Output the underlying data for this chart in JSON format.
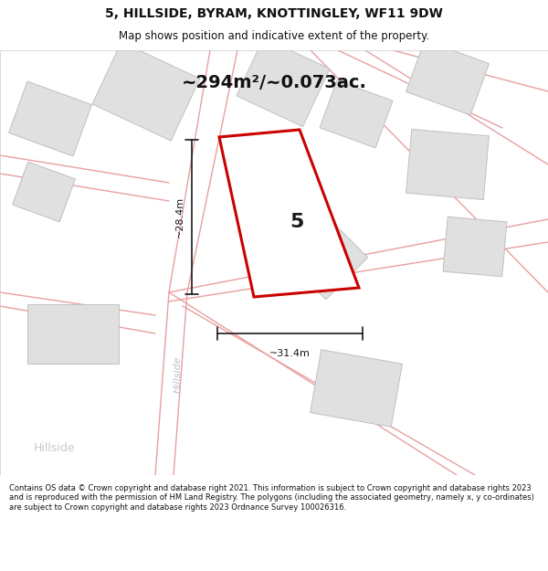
{
  "title": "5, HILLSIDE, BYRAM, KNOTTINGLEY, WF11 9DW",
  "subtitle": "Map shows position and indicative extent of the property.",
  "area_text": "~294m²/~0.073ac.",
  "property_number": "5",
  "dim_height": "~28.4m",
  "dim_width": "~31.4m",
  "road_label_vert": "Hillside",
  "road_label_diag": "Hillside",
  "road_label_bottom": "Hillside",
  "footer": "Contains OS data © Crown copyright and database right 2021. This information is subject to Crown copyright and database rights 2023 and is reproduced with the permission of HM Land Registry. The polygons (including the associated geometry, namely x, y co-ordinates) are subject to Crown copyright and database rights 2023 Ordnance Survey 100026316.",
  "map_bg": "#f5f0f0",
  "building_color": "#e0e0e0",
  "building_edge": "#c0c0c0",
  "road_line_color": "#e8a0a0",
  "property_edge": "#cc0000",
  "property_fill": "#ffffff",
  "dim_line_color": "#1a1a1a",
  "annotation_color": "#111111",
  "title_size": 10,
  "subtitle_size": 8.5,
  "area_text_size": 14,
  "footer_size": 6.0,
  "property_label_size": 16,
  "dim_label_size": 8,
  "road_label_size": 8
}
